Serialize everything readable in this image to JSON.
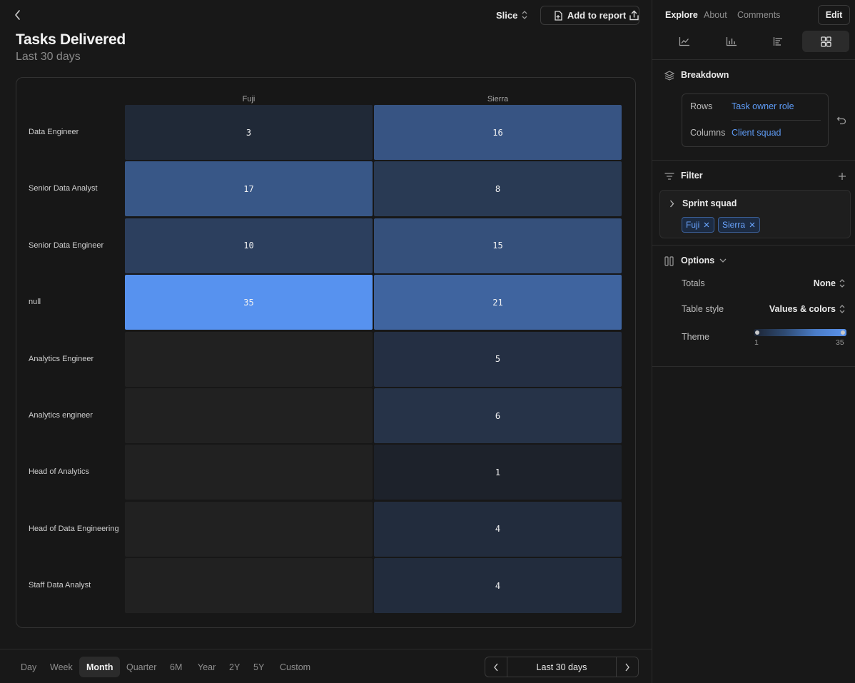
{
  "header": {
    "slice_label": "Slice",
    "add_to_report_label": "Add to report",
    "title": "Tasks Delivered",
    "subtitle": "Last 30 days"
  },
  "table": {
    "columns": [
      "Fuji",
      "Sierra"
    ],
    "rows": [
      {
        "label": "Data Engineer",
        "values": [
          "3",
          "16"
        ],
        "fill": [
          0.06,
          0.45
        ]
      },
      {
        "label": "Senior Data Analyst",
        "values": [
          "17",
          "8"
        ],
        "fill": [
          0.47,
          0.21
        ]
      },
      {
        "label": "Senior Data Engineer",
        "values": [
          "10",
          "15"
        ],
        "fill": [
          0.26,
          0.41
        ]
      },
      {
        "label": "null",
        "values": [
          "35",
          "21"
        ],
        "fill": [
          1.0,
          0.59
        ]
      },
      {
        "label": "Analytics Engineer",
        "values": [
          "",
          "5"
        ],
        "fill": [
          null,
          0.12
        ]
      },
      {
        "label": "Analytics engineer",
        "values": [
          "",
          "6"
        ],
        "fill": [
          null,
          0.15
        ]
      },
      {
        "label": "Head of Analytics",
        "values": [
          "",
          "1"
        ],
        "fill": [
          null,
          0.0
        ]
      },
      {
        "label": "Head of Data Engineering",
        "values": [
          "",
          "4"
        ],
        "fill": [
          null,
          0.09
        ]
      },
      {
        "label": "Staff Data Analyst",
        "values": [
          "",
          "4"
        ],
        "fill": [
          null,
          0.09
        ]
      }
    ]
  },
  "time_ranges": {
    "tabs": [
      "Day",
      "Week",
      "Month",
      "Quarter",
      "6M",
      "Year",
      "2Y",
      "5Y",
      "Custom"
    ],
    "active": "Month",
    "current_label": "Last 30 days"
  },
  "sidebar": {
    "tabs": {
      "explore": "Explore",
      "about": "About",
      "comments": "Comments"
    },
    "edit_label": "Edit",
    "breakdown": {
      "title": "Breakdown",
      "rows_key": "Rows",
      "rows_value": "Task owner role",
      "columns_key": "Columns",
      "columns_value": "Client squad"
    },
    "filter": {
      "title": "Filter",
      "group_name": "Sprint squad",
      "chips": [
        "Fuji",
        "Sierra"
      ]
    },
    "options": {
      "title": "Options",
      "totals_key": "Totals",
      "totals_value": "None",
      "table_style_key": "Table style",
      "table_style_value": "Values & colors",
      "theme_key": "Theme",
      "theme_min": "1",
      "theme_max": "35"
    }
  },
  "colors": {
    "accent": "#5e9bf5",
    "heat_low": "#1d222b",
    "heat_high": "#5792ef",
    "empty_cell": "#212121"
  }
}
